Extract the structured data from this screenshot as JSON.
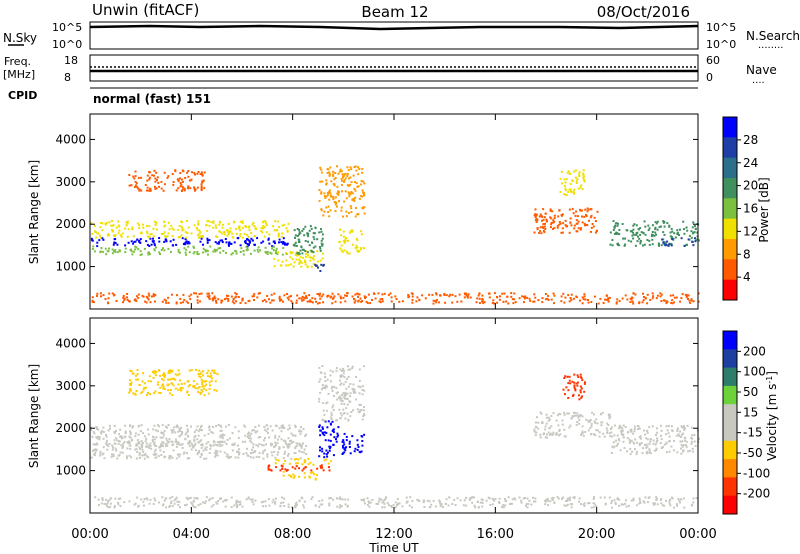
{
  "header": {
    "station": "Unwin (fitACF)",
    "beam": "Beam 12",
    "date": "08/Oct/2016"
  },
  "status_panels": {
    "nsky": {
      "label": "N.Sky",
      "left_ticks": [
        "10^5",
        "10^0"
      ],
      "right_ticks": [
        "10^5",
        "10^0"
      ],
      "right_label": "N.Search",
      "right_label_dots": "........"
    },
    "freq": {
      "label": "Freq.",
      "unit": "[MHz]",
      "left_ticks": [
        "18",
        "8"
      ],
      "right_ticks": [
        "60",
        "0"
      ],
      "right_label": "Nave",
      "right_label_dots": "...."
    },
    "cpid": {
      "label": "CPID",
      "value": "normal (fast) 151"
    }
  },
  "colors": {
    "power_scale": [
      "#0000ff",
      "#1f3fa6",
      "#2b6f8a",
      "#3f8f5f",
      "#7cc040",
      "#f0e000",
      "#ff9a00",
      "#ff5a00",
      "#ff0000"
    ],
    "velocity_scale": [
      "#0000ff",
      "#1c3fa0",
      "#2e7d6b",
      "#6bd23a",
      "#c8c8c0",
      "#c8c8c0",
      "#ffcc00",
      "#ff8800",
      "#ff3300",
      "#ff0000"
    ]
  },
  "chart_data": [
    {
      "type": "heatmap",
      "name": "power-panel",
      "ylabel": "Slant Range [km]",
      "yticks": [
        "1000",
        "2000",
        "3000",
        "4000"
      ],
      "ylim": [
        0,
        4600
      ],
      "colorbar": {
        "label": "Power [dB]",
        "ticks": [
          "28",
          "24",
          "20",
          "16",
          "12",
          "8",
          "4"
        ],
        "range": [
          0,
          32
        ]
      },
      "echo_regions": [
        {
          "t_start": 0.0,
          "t_end": 7.8,
          "range_low": 1500,
          "range_high": 1700,
          "value": 30
        },
        {
          "t_start": 0.0,
          "t_end": 7.8,
          "range_low": 1300,
          "range_high": 1500,
          "value": 16
        },
        {
          "t_start": 0.0,
          "t_end": 7.8,
          "range_low": 1700,
          "range_high": 2100,
          "value": 12
        },
        {
          "t_start": 1.5,
          "t_end": 4.5,
          "range_low": 2800,
          "range_high": 3300,
          "value": 6
        },
        {
          "t_start": 7.2,
          "t_end": 9.2,
          "range_low": 1000,
          "range_high": 1400,
          "value": 12
        },
        {
          "t_start": 8.8,
          "t_end": 9.3,
          "range_low": 900,
          "range_high": 1100,
          "value": 28
        },
        {
          "t_start": 8.0,
          "t_end": 9.2,
          "range_low": 1300,
          "range_high": 2000,
          "value": 20
        },
        {
          "t_start": 9.0,
          "t_end": 10.8,
          "range_low": 2200,
          "range_high": 3400,
          "value": 8
        },
        {
          "t_start": 9.8,
          "t_end": 10.8,
          "range_low": 1300,
          "range_high": 1900,
          "value": 14
        },
        {
          "t_start": 18.5,
          "t_end": 19.5,
          "range_low": 2700,
          "range_high": 3300,
          "value": 12
        },
        {
          "t_start": 17.5,
          "t_end": 20.0,
          "range_low": 1800,
          "range_high": 2400,
          "value": 6
        },
        {
          "t_start": 20.5,
          "t_end": 24.0,
          "range_low": 1500,
          "range_high": 2100,
          "value": 18
        },
        {
          "t_start": 22.5,
          "t_end": 24.0,
          "range_low": 1500,
          "range_high": 1700,
          "value": 28
        },
        {
          "t_start": 0.0,
          "t_end": 24.0,
          "range_low": 150,
          "range_high": 400,
          "value": 6
        }
      ]
    },
    {
      "type": "heatmap",
      "name": "velocity-panel",
      "ylabel": "Slant Range [km]",
      "yticks": [
        "1000",
        "2000",
        "3000",
        "4000"
      ],
      "ylim": [
        0,
        4600
      ],
      "colorbar": {
        "label": "Velocity [m s^-1]",
        "ticks": [
          "200",
          "100",
          "50",
          "15",
          "-15",
          "-50",
          "-100",
          "-200"
        ],
        "range": [
          -250,
          250
        ]
      },
      "echo_regions": [
        {
          "t_start": 0.0,
          "t_end": 8.5,
          "range_low": 1300,
          "range_high": 2100,
          "value": 0
        },
        {
          "t_start": 0.0,
          "t_end": 8.5,
          "range_low": 1600,
          "range_high": 1700,
          "value": 5
        },
        {
          "t_start": 7.0,
          "t_end": 9.5,
          "range_low": 1000,
          "range_high": 1150,
          "value": -180
        },
        {
          "t_start": 7.0,
          "t_end": 9.5,
          "range_low": 1150,
          "range_high": 1300,
          "value": -80
        },
        {
          "t_start": 7.5,
          "t_end": 9.0,
          "range_low": 800,
          "range_high": 1000,
          "value": -60
        },
        {
          "t_start": 9.0,
          "t_end": 9.8,
          "range_low": 1300,
          "range_high": 2200,
          "value": 220
        },
        {
          "t_start": 9.9,
          "t_end": 10.8,
          "range_low": 1400,
          "range_high": 1900,
          "value": 220
        },
        {
          "t_start": 9.0,
          "t_end": 10.8,
          "range_low": 2200,
          "range_high": 3500,
          "value": -40
        },
        {
          "t_start": 1.5,
          "t_end": 5.0,
          "range_low": 2800,
          "range_high": 3400,
          "value": -60
        },
        {
          "t_start": 18.6,
          "t_end": 19.5,
          "range_low": 2700,
          "range_high": 3300,
          "value": -200
        },
        {
          "t_start": 17.5,
          "t_end": 20.5,
          "range_low": 1800,
          "range_high": 2400,
          "value": -30
        },
        {
          "t_start": 20.5,
          "t_end": 24.0,
          "range_low": 1400,
          "range_high": 2100,
          "value": 0
        },
        {
          "t_start": 0.0,
          "t_end": 24.0,
          "range_low": 150,
          "range_high": 400,
          "value": 30
        }
      ]
    }
  ],
  "time_axis": {
    "xlabel": "Time UT",
    "ticks": [
      "00:00",
      "04:00",
      "08:00",
      "12:00",
      "16:00",
      "20:00",
      "00:00"
    ],
    "range_hours": [
      0,
      24
    ]
  }
}
